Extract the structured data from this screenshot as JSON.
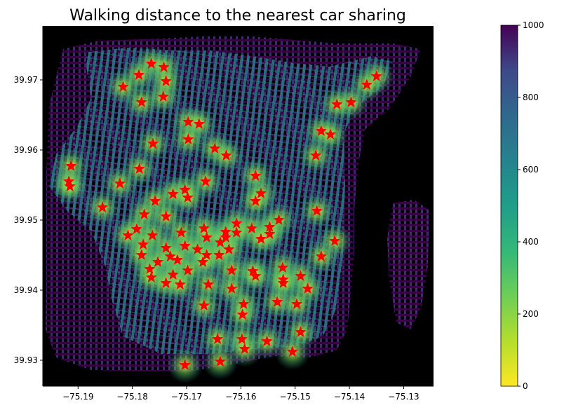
{
  "chart_data": {
    "type": "scatter",
    "title": "Walking distance to the nearest car sharing",
    "xlabel": "",
    "ylabel": "",
    "xlim": [
      -75.1965,
      -75.1245
    ],
    "ylim": [
      39.9263,
      39.9777
    ],
    "x_ticks": [
      "−75.19",
      "−75.18",
      "−75.17",
      "−75.16",
      "−75.15",
      "−75.14",
      "−75.13"
    ],
    "x_tick_values": [
      -75.19,
      -75.18,
      -75.17,
      -75.16,
      -75.15,
      -75.14,
      -75.13
    ],
    "y_ticks": [
      "39.93",
      "39.94",
      "39.95",
      "39.96",
      "39.97"
    ],
    "y_tick_values": [
      39.93,
      39.94,
      39.95,
      39.96,
      39.97
    ],
    "background": "#000000",
    "colorbar": {
      "colormap": "viridis",
      "reversed": true,
      "min": 0,
      "max": 1000,
      "ticks": [
        "0",
        "200",
        "400",
        "600",
        "800",
        "1000"
      ],
      "tick_values": [
        0,
        200,
        400,
        600,
        800,
        1000
      ]
    },
    "series": [
      {
        "marker": "star",
        "color": "#ff0000",
        "points": [
          [
            -75.1765,
            39.9723
          ],
          [
            -75.1742,
            39.9718
          ],
          [
            -75.1788,
            39.9707
          ],
          [
            -75.1817,
            39.969
          ],
          [
            -75.1783,
            39.9668
          ],
          [
            -75.1743,
            39.9676
          ],
          [
            -75.1738,
            39.9698
          ],
          [
            -75.135,
            39.9705
          ],
          [
            -75.1368,
            39.9693
          ],
          [
            -75.1397,
            39.9668
          ],
          [
            -75.1423,
            39.9665
          ],
          [
            -75.1452,
            39.9627
          ],
          [
            -75.1435,
            39.9622
          ],
          [
            -75.1462,
            39.9592
          ],
          [
            -75.1697,
            39.964
          ],
          [
            -75.1677,
            39.9637
          ],
          [
            -75.1697,
            39.9615
          ],
          [
            -75.1762,
            39.9609
          ],
          [
            -75.1648,
            39.9602
          ],
          [
            -75.1627,
            39.9592
          ],
          [
            -75.1913,
            39.9577
          ],
          [
            -75.1787,
            39.9573
          ],
          [
            -75.1573,
            39.9563
          ],
          [
            -75.1917,
            39.9555
          ],
          [
            -75.1823,
            39.9552
          ],
          [
            -75.1915,
            39.9548
          ],
          [
            -75.1665,
            39.9555
          ],
          [
            -75.1703,
            39.9543
          ],
          [
            -75.1725,
            39.9537
          ],
          [
            -75.1698,
            39.9532
          ],
          [
            -75.1563,
            39.9538
          ],
          [
            -75.1573,
            39.9527
          ],
          [
            -75.1758,
            39.9527
          ],
          [
            -75.1855,
            39.9518
          ],
          [
            -75.146,
            39.9513
          ],
          [
            -75.1778,
            39.9508
          ],
          [
            -75.1738,
            39.9505
          ],
          [
            -75.153,
            39.95
          ],
          [
            -75.1608,
            39.9495
          ],
          [
            -75.1547,
            39.949
          ],
          [
            -75.158,
            39.9488
          ],
          [
            -75.1628,
            39.9483
          ],
          [
            -75.1668,
            39.9488
          ],
          [
            -75.1792,
            39.9487
          ],
          [
            -75.171,
            39.9482
          ],
          [
            -75.1608,
            39.9482
          ],
          [
            -75.1808,
            39.9478
          ],
          [
            -75.1547,
            39.948
          ],
          [
            -75.1763,
            39.9478
          ],
          [
            -75.1628,
            39.9475
          ],
          [
            -75.1663,
            39.9475
          ],
          [
            -75.1563,
            39.9473
          ],
          [
            -75.1427,
            39.947
          ],
          [
            -75.1638,
            39.9468
          ],
          [
            -75.178,
            39.9465
          ],
          [
            -75.1703,
            39.9463
          ],
          [
            -75.1738,
            39.946
          ],
          [
            -75.168,
            39.9458
          ],
          [
            -75.1622,
            39.9458
          ],
          [
            -75.164,
            39.945
          ],
          [
            -75.1783,
            39.945
          ],
          [
            -75.1663,
            39.945
          ],
          [
            -75.1452,
            39.9448
          ],
          [
            -75.173,
            39.9448
          ],
          [
            -75.1717,
            39.9443
          ],
          [
            -75.167,
            39.944
          ],
          [
            -75.1753,
            39.944
          ],
          [
            -75.1523,
            39.9432
          ],
          [
            -75.1768,
            39.943
          ],
          [
            -75.1698,
            39.9428
          ],
          [
            -75.1578,
            39.9427
          ],
          [
            -75.1617,
            39.9428
          ],
          [
            -75.1573,
            39.942
          ],
          [
            -75.149,
            39.942
          ],
          [
            -75.1522,
            39.9415
          ],
          [
            -75.1765,
            39.9418
          ],
          [
            -75.1725,
            39.9422
          ],
          [
            -75.1522,
            39.941
          ],
          [
            -75.1738,
            39.941
          ],
          [
            -75.1712,
            39.9408
          ],
          [
            -75.166,
            39.9408
          ],
          [
            -75.1617,
            39.9402
          ],
          [
            -75.1477,
            39.9402
          ],
          [
            -75.1533,
            39.9383
          ],
          [
            -75.1497,
            39.938
          ],
          [
            -75.1595,
            39.938
          ],
          [
            -75.1668,
            39.9378
          ],
          [
            -75.1597,
            39.9365
          ],
          [
            -75.149,
            39.934
          ],
          [
            -75.1598,
            39.933
          ],
          [
            -75.1643,
            39.933
          ],
          [
            -75.1552,
            39.9327
          ],
          [
            -75.1593,
            39.9316
          ],
          [
            -75.1505,
            39.9312
          ],
          [
            -75.1638,
            39.9298
          ],
          [
            -75.1703,
            39.9293
          ]
        ]
      }
    ]
  }
}
